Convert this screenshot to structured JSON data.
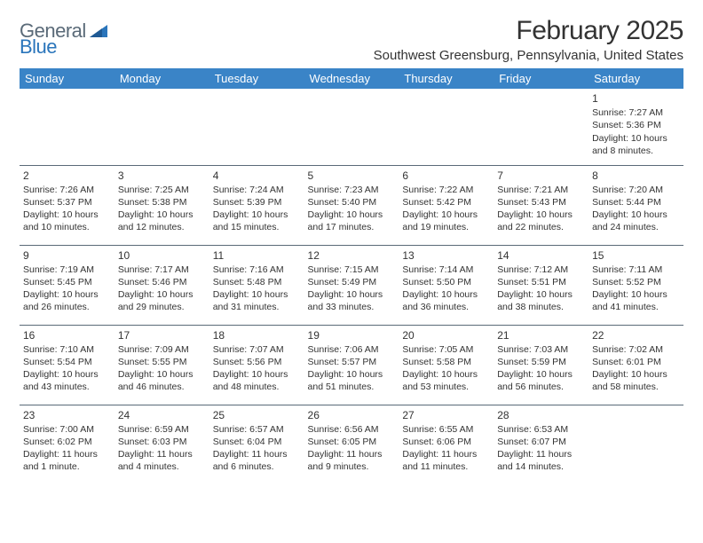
{
  "logo": {
    "word1": "General",
    "word2": "Blue"
  },
  "title": "February 2025",
  "location": "Southwest Greensburg, Pennsylvania, United States",
  "header_bg": "#3a84c7",
  "header_text_color": "#ffffff",
  "border_color": "#5a6a78",
  "text_color": "#333333",
  "day_headers": [
    "Sunday",
    "Monday",
    "Tuesday",
    "Wednesday",
    "Thursday",
    "Friday",
    "Saturday"
  ],
  "weeks": [
    [
      null,
      null,
      null,
      null,
      null,
      null,
      {
        "n": "1",
        "sr": "Sunrise: 7:27 AM",
        "ss": "Sunset: 5:36 PM",
        "dl": "Daylight: 10 hours and 8 minutes."
      }
    ],
    [
      {
        "n": "2",
        "sr": "Sunrise: 7:26 AM",
        "ss": "Sunset: 5:37 PM",
        "dl": "Daylight: 10 hours and 10 minutes."
      },
      {
        "n": "3",
        "sr": "Sunrise: 7:25 AM",
        "ss": "Sunset: 5:38 PM",
        "dl": "Daylight: 10 hours and 12 minutes."
      },
      {
        "n": "4",
        "sr": "Sunrise: 7:24 AM",
        "ss": "Sunset: 5:39 PM",
        "dl": "Daylight: 10 hours and 15 minutes."
      },
      {
        "n": "5",
        "sr": "Sunrise: 7:23 AM",
        "ss": "Sunset: 5:40 PM",
        "dl": "Daylight: 10 hours and 17 minutes."
      },
      {
        "n": "6",
        "sr": "Sunrise: 7:22 AM",
        "ss": "Sunset: 5:42 PM",
        "dl": "Daylight: 10 hours and 19 minutes."
      },
      {
        "n": "7",
        "sr": "Sunrise: 7:21 AM",
        "ss": "Sunset: 5:43 PM",
        "dl": "Daylight: 10 hours and 22 minutes."
      },
      {
        "n": "8",
        "sr": "Sunrise: 7:20 AM",
        "ss": "Sunset: 5:44 PM",
        "dl": "Daylight: 10 hours and 24 minutes."
      }
    ],
    [
      {
        "n": "9",
        "sr": "Sunrise: 7:19 AM",
        "ss": "Sunset: 5:45 PM",
        "dl": "Daylight: 10 hours and 26 minutes."
      },
      {
        "n": "10",
        "sr": "Sunrise: 7:17 AM",
        "ss": "Sunset: 5:46 PM",
        "dl": "Daylight: 10 hours and 29 minutes."
      },
      {
        "n": "11",
        "sr": "Sunrise: 7:16 AM",
        "ss": "Sunset: 5:48 PM",
        "dl": "Daylight: 10 hours and 31 minutes."
      },
      {
        "n": "12",
        "sr": "Sunrise: 7:15 AM",
        "ss": "Sunset: 5:49 PM",
        "dl": "Daylight: 10 hours and 33 minutes."
      },
      {
        "n": "13",
        "sr": "Sunrise: 7:14 AM",
        "ss": "Sunset: 5:50 PM",
        "dl": "Daylight: 10 hours and 36 minutes."
      },
      {
        "n": "14",
        "sr": "Sunrise: 7:12 AM",
        "ss": "Sunset: 5:51 PM",
        "dl": "Daylight: 10 hours and 38 minutes."
      },
      {
        "n": "15",
        "sr": "Sunrise: 7:11 AM",
        "ss": "Sunset: 5:52 PM",
        "dl": "Daylight: 10 hours and 41 minutes."
      }
    ],
    [
      {
        "n": "16",
        "sr": "Sunrise: 7:10 AM",
        "ss": "Sunset: 5:54 PM",
        "dl": "Daylight: 10 hours and 43 minutes."
      },
      {
        "n": "17",
        "sr": "Sunrise: 7:09 AM",
        "ss": "Sunset: 5:55 PM",
        "dl": "Daylight: 10 hours and 46 minutes."
      },
      {
        "n": "18",
        "sr": "Sunrise: 7:07 AM",
        "ss": "Sunset: 5:56 PM",
        "dl": "Daylight: 10 hours and 48 minutes."
      },
      {
        "n": "19",
        "sr": "Sunrise: 7:06 AM",
        "ss": "Sunset: 5:57 PM",
        "dl": "Daylight: 10 hours and 51 minutes."
      },
      {
        "n": "20",
        "sr": "Sunrise: 7:05 AM",
        "ss": "Sunset: 5:58 PM",
        "dl": "Daylight: 10 hours and 53 minutes."
      },
      {
        "n": "21",
        "sr": "Sunrise: 7:03 AM",
        "ss": "Sunset: 5:59 PM",
        "dl": "Daylight: 10 hours and 56 minutes."
      },
      {
        "n": "22",
        "sr": "Sunrise: 7:02 AM",
        "ss": "Sunset: 6:01 PM",
        "dl": "Daylight: 10 hours and 58 minutes."
      }
    ],
    [
      {
        "n": "23",
        "sr": "Sunrise: 7:00 AM",
        "ss": "Sunset: 6:02 PM",
        "dl": "Daylight: 11 hours and 1 minute."
      },
      {
        "n": "24",
        "sr": "Sunrise: 6:59 AM",
        "ss": "Sunset: 6:03 PM",
        "dl": "Daylight: 11 hours and 4 minutes."
      },
      {
        "n": "25",
        "sr": "Sunrise: 6:57 AM",
        "ss": "Sunset: 6:04 PM",
        "dl": "Daylight: 11 hours and 6 minutes."
      },
      {
        "n": "26",
        "sr": "Sunrise: 6:56 AM",
        "ss": "Sunset: 6:05 PM",
        "dl": "Daylight: 11 hours and 9 minutes."
      },
      {
        "n": "27",
        "sr": "Sunrise: 6:55 AM",
        "ss": "Sunset: 6:06 PM",
        "dl": "Daylight: 11 hours and 11 minutes."
      },
      {
        "n": "28",
        "sr": "Sunrise: 6:53 AM",
        "ss": "Sunset: 6:07 PM",
        "dl": "Daylight: 11 hours and 14 minutes."
      },
      null
    ]
  ]
}
